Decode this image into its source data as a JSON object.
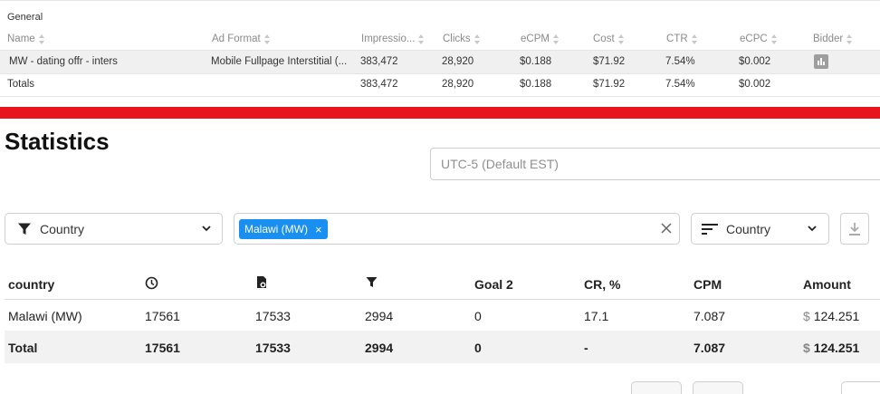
{
  "general": {
    "label": "General",
    "columns": [
      {
        "label": "Name",
        "sortable": true
      },
      {
        "label": "Ad Format",
        "sortable": true
      },
      {
        "label": "Impressio...",
        "sortable": true
      },
      {
        "label": "Clicks",
        "sortable": true
      },
      {
        "label": "eCPM",
        "sortable": true
      },
      {
        "label": "Cost",
        "sortable": true
      },
      {
        "label": "CTR",
        "sortable": true
      },
      {
        "label": "eCPC",
        "sortable": true
      },
      {
        "label": "Bidder",
        "sortable": true
      }
    ],
    "row": {
      "name": "MW - dating offr - inters",
      "format": "Mobile Fullpage Interstitial (...",
      "impressions": "383,472",
      "clicks": "28,920",
      "ecpm": "$0.188",
      "cost": "$71.92",
      "ctr": "7.54%",
      "ecpc": "$0.002",
      "bidder_icon": "bar-chart-icon"
    },
    "totals": {
      "label": "Totals",
      "impressions": "383,472",
      "clicks": "28,920",
      "ecpm": "$0.188",
      "cost": "$71.92",
      "ctr": "7.54%",
      "ecpc": "$0.002"
    }
  },
  "divider_color": "#e8141c",
  "statistics": {
    "title": "Statistics",
    "timezone_placeholder": "UTC-5 (Default EST)",
    "filter_group": {
      "icon": "filter-icon",
      "value": "Country"
    },
    "chip": {
      "label": "Malawi (MW)",
      "color": "#1a8ff2"
    },
    "sort_group": {
      "icon": "sort-lines-icon",
      "value": "Country"
    },
    "download_icon": "download-icon",
    "table": {
      "headers": {
        "country": "country",
        "col2_icon": "clock-icon",
        "col3_icon": "document-icon",
        "col4_icon": "funnel-icon",
        "goal2": "Goal 2",
        "cr": "CR, %",
        "cpm": "CPM",
        "amount": "Amount"
      },
      "rows": [
        {
          "country": "Malawi (MW)",
          "c2": "17561",
          "c3": "17533",
          "c4": "2994",
          "goal2": "0",
          "cr": "17.1",
          "cpm": "7.087",
          "currency": "$",
          "amount": "124.251"
        }
      ],
      "total": {
        "label": "Total",
        "c2": "17561",
        "c3": "17533",
        "c4": "2994",
        "goal2": "0",
        "cr": "-",
        "cpm": "7.087",
        "currency": "$",
        "amount": "124.251"
      }
    }
  }
}
